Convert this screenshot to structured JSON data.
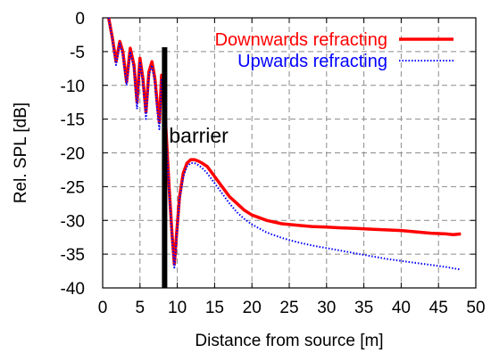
{
  "chart_data": {
    "type": "line",
    "xlabel": "Distance from source [m]",
    "ylabel": "Rel. SPL [dB]",
    "xlim": [
      0,
      50
    ],
    "ylim": [
      -40,
      0
    ],
    "xticks": [
      0,
      5,
      10,
      15,
      20,
      25,
      30,
      35,
      40,
      45,
      50
    ],
    "yticks": [
      0,
      -5,
      -10,
      -15,
      -20,
      -25,
      -30,
      -35,
      -40
    ],
    "grid": true,
    "legend_position": "top-right",
    "series": [
      {
        "name": "Downwards refracting",
        "color": "#ff0000",
        "style": "solid",
        "x": [
          0.8,
          1.3,
          1.8,
          2.3,
          2.7,
          3.2,
          3.7,
          4.2,
          4.6,
          5.0,
          5.4,
          5.8,
          6.2,
          6.6,
          7.0,
          7.3,
          7.6,
          7.9,
          8.2,
          8.5,
          8.9,
          9.3,
          9.6,
          9.9,
          10.3,
          10.8,
          11.3,
          11.8,
          12.3,
          12.8,
          13.3,
          14.0,
          15.0,
          16.0,
          17.0,
          18.0,
          19.0,
          20.0,
          22.0,
          24.0,
          26.0,
          28.0,
          30.0,
          32.0,
          34.0,
          36.0,
          38.0,
          40.0,
          42.0,
          44.0,
          46.0,
          47.0,
          48.0
        ],
        "y": [
          0.0,
          -3.0,
          -6.5,
          -3.5,
          -5.0,
          -9.5,
          -4.5,
          -7.0,
          -12.5,
          -6.0,
          -9.0,
          -14.0,
          -8.0,
          -6.5,
          -9.0,
          -12.5,
          -15.5,
          -8.5,
          -11.0,
          -17.0,
          -25.0,
          -32.0,
          -36.5,
          -32.0,
          -26.5,
          -23.0,
          -21.5,
          -21.0,
          -21.0,
          -21.2,
          -21.5,
          -22.0,
          -23.5,
          -25.0,
          -26.5,
          -27.5,
          -28.5,
          -29.2,
          -30.0,
          -30.5,
          -30.7,
          -30.9,
          -31.0,
          -31.1,
          -31.2,
          -31.3,
          -31.4,
          -31.5,
          -31.7,
          -31.9,
          -32.0,
          -32.1,
          -32.0
        ]
      },
      {
        "name": "Upwards refracting",
        "color": "#0000ff",
        "style": "dotted",
        "x": [
          0.8,
          1.3,
          1.8,
          2.3,
          2.7,
          3.2,
          3.7,
          4.2,
          4.6,
          5.0,
          5.4,
          5.8,
          6.2,
          6.6,
          7.0,
          7.3,
          7.6,
          7.9,
          8.2,
          8.5,
          8.9,
          9.3,
          9.6,
          9.9,
          10.3,
          10.8,
          11.3,
          11.8,
          12.3,
          12.8,
          13.3,
          14.0,
          15.0,
          16.0,
          17.0,
          18.0,
          19.0,
          20.0,
          22.0,
          24.0,
          26.0,
          28.0,
          30.0,
          32.0,
          34.0,
          36.0,
          38.0,
          40.0,
          42.0,
          44.0,
          46.0,
          47.0,
          48.0
        ],
        "y": [
          0.0,
          -3.2,
          -7.0,
          -3.8,
          -5.5,
          -10.0,
          -5.0,
          -7.5,
          -13.5,
          -6.5,
          -9.5,
          -15.0,
          -8.5,
          -7.0,
          -9.5,
          -13.5,
          -16.5,
          -9.0,
          -11.5,
          -17.5,
          -25.5,
          -32.5,
          -37.0,
          -32.5,
          -27.0,
          -23.5,
          -22.0,
          -21.5,
          -21.5,
          -21.8,
          -22.2,
          -23.0,
          -24.5,
          -26.0,
          -27.5,
          -28.8,
          -29.8,
          -30.6,
          -31.8,
          -32.6,
          -33.2,
          -33.7,
          -34.1,
          -34.5,
          -34.9,
          -35.3,
          -35.7,
          -36.0,
          -36.3,
          -36.6,
          -36.9,
          -37.1,
          -37.3
        ]
      }
    ],
    "barrier": {
      "x": 8.3,
      "label": "barrier"
    }
  }
}
